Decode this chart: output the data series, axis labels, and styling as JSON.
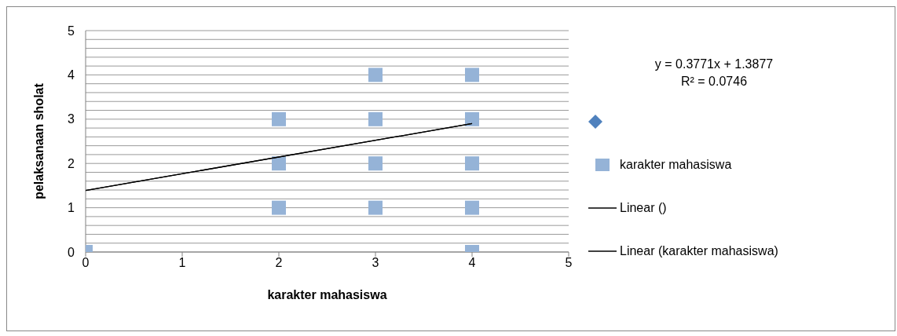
{
  "chart_data": {
    "type": "scatter",
    "xlabel": "karakter mahasiswa",
    "ylabel": "pelaksanaan sholat",
    "xlim": [
      0,
      5
    ],
    "xticks": [
      0,
      1,
      2,
      3,
      4,
      5
    ],
    "ylim": [
      0,
      5
    ],
    "yticks": [
      0,
      {
        "value": 0.2,
        "label": null
      },
      {
        "value": 0.4,
        "label": null
      },
      {
        "value": 0.6,
        "label": null
      },
      {
        "value": 0.8,
        "label": null
      },
      1,
      {
        "value": 1.2,
        "label": null
      },
      {
        "value": 1.4,
        "label": null
      },
      {
        "value": 1.6,
        "label": null
      },
      {
        "value": 1.8,
        "label": null
      },
      2,
      {
        "value": 2.2,
        "label": null
      },
      {
        "value": 2.4,
        "label": null
      },
      {
        "value": 2.6,
        "label": null
      },
      {
        "value": 2.8,
        "label": null
      },
      3,
      {
        "value": 3.2,
        "label": null
      },
      {
        "value": 3.4,
        "label": null
      },
      {
        "value": 3.6,
        "label": null
      },
      {
        "value": 3.8,
        "label": null
      },
      4,
      {
        "value": 4.2,
        "label": null
      },
      {
        "value": 4.4,
        "label": null
      },
      {
        "value": 4.6,
        "label": null
      },
      {
        "value": 4.8,
        "label": null
      },
      5
    ],
    "grid": "y",
    "legend": "right",
    "annotations": [
      "y = 0.3771x + 1.3877",
      "R² = 0.0746"
    ],
    "series": [
      {
        "marker": "square",
        "name": "karakter mahasiswa",
        "color": "#95b3d7",
        "x": [
          0,
          2,
          2,
          2,
          3,
          3,
          3,
          3,
          4,
          4,
          4,
          4,
          4
        ],
        "values": [
          0,
          1,
          2,
          3,
          1,
          2,
          3,
          4,
          0,
          1,
          2,
          3,
          4
        ]
      },
      {
        "type": "line",
        "name": "Linear ()",
        "color": "#000000",
        "marker": "none",
        "x": [
          0,
          4
        ],
        "values": [
          1.39,
          2.9
        ]
      },
      {
        "type": "line",
        "name": "Linear (karakter mahasiswa)",
        "color": "#000000",
        "marker": "none",
        "x": [
          0,
          4
        ],
        "values": [
          1.39,
          2.9
        ]
      }
    ]
  }
}
